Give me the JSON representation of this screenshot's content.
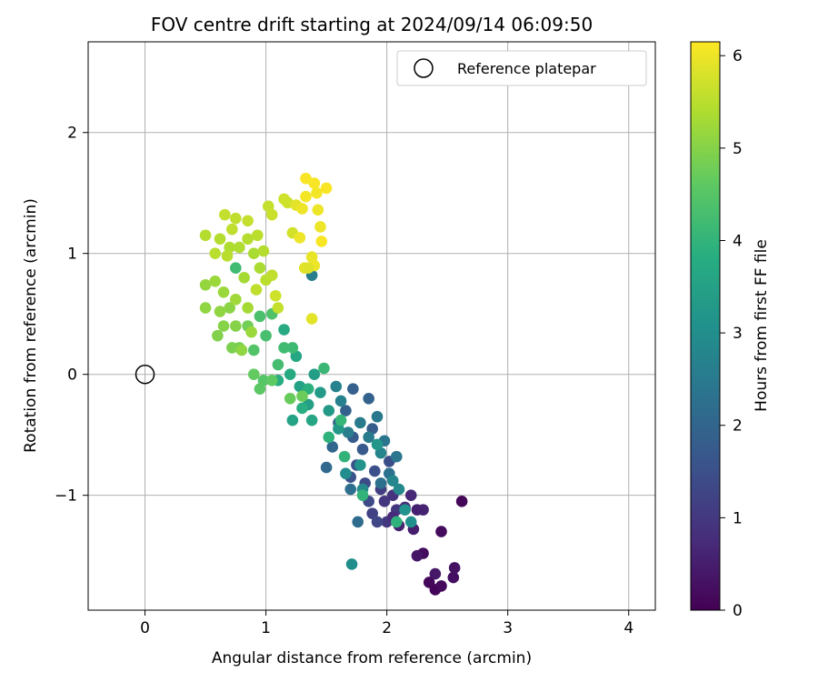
{
  "chart_data": {
    "type": "scatter",
    "title": "FOV centre drift starting at 2024/09/14 06:09:50",
    "xlabel": "Angular distance from reference (arcmin)",
    "ylabel": "Rotation from reference (arcmin)",
    "xlim": [
      -0.47,
      4.22
    ],
    "ylim": [
      -1.95,
      2.75
    ],
    "xticks": [
      "0",
      "1",
      "2",
      "3",
      "4"
    ],
    "yticks": [
      "−1",
      "0",
      "1",
      "2"
    ],
    "grid": true,
    "legend": {
      "placement": "top-right",
      "entries": [
        "Reference platepar"
      ]
    },
    "reference_point": {
      "x": 0,
      "y": 0
    },
    "colorbar": {
      "label": "Hours from first FF file",
      "range": [
        0,
        6.15
      ],
      "ticks": [
        "0",
        "1",
        "2",
        "3",
        "4",
        "5",
        "6"
      ],
      "colormap": "viridis"
    },
    "points": [
      {
        "x": 2.62,
        "y": -1.05,
        "c": 0.1
      },
      {
        "x": 2.45,
        "y": -1.3,
        "c": 0.2
      },
      {
        "x": 2.4,
        "y": -1.78,
        "c": 0.05
      },
      {
        "x": 2.35,
        "y": -1.72,
        "c": 0.1
      },
      {
        "x": 2.45,
        "y": -1.75,
        "c": 0.15
      },
      {
        "x": 2.55,
        "y": -1.68,
        "c": 0.25
      },
      {
        "x": 2.56,
        "y": -1.6,
        "c": 0.3
      },
      {
        "x": 2.3,
        "y": -1.48,
        "c": 0.2
      },
      {
        "x": 2.25,
        "y": -1.5,
        "c": 0.35
      },
      {
        "x": 2.4,
        "y": -1.65,
        "c": 0.4
      },
      {
        "x": 2.22,
        "y": -1.28,
        "c": 0.5
      },
      {
        "x": 2.1,
        "y": -1.25,
        "c": 0.6
      },
      {
        "x": 2.25,
        "y": -1.12,
        "c": 0.55
      },
      {
        "x": 2.2,
        "y": -1.0,
        "c": 0.7
      },
      {
        "x": 2.15,
        "y": -1.1,
        "c": 0.8
      },
      {
        "x": 2.05,
        "y": -1.0,
        "c": 0.9
      },
      {
        "x": 2.08,
        "y": -1.12,
        "c": 1.0
      },
      {
        "x": 2.0,
        "y": -1.22,
        "c": 1.0
      },
      {
        "x": 2.3,
        "y": -1.12,
        "c": 0.6
      },
      {
        "x": 2.05,
        "y": -1.18,
        "c": 0.75
      },
      {
        "x": 1.98,
        "y": -1.05,
        "c": 0.95
      },
      {
        "x": 1.95,
        "y": -0.95,
        "c": 1.1
      },
      {
        "x": 1.88,
        "y": -1.15,
        "c": 1.2
      },
      {
        "x": 1.92,
        "y": -1.22,
        "c": 1.3
      },
      {
        "x": 1.85,
        "y": -1.05,
        "c": 1.35
      },
      {
        "x": 1.82,
        "y": -0.9,
        "c": 1.4
      },
      {
        "x": 1.9,
        "y": -0.8,
        "c": 1.5
      },
      {
        "x": 2.02,
        "y": -0.72,
        "c": 1.45
      },
      {
        "x": 1.75,
        "y": -0.75,
        "c": 1.55
      },
      {
        "x": 1.7,
        "y": -0.85,
        "c": 1.6
      },
      {
        "x": 1.8,
        "y": -0.62,
        "c": 1.7
      },
      {
        "x": 1.72,
        "y": -0.52,
        "c": 1.75
      },
      {
        "x": 1.88,
        "y": -0.45,
        "c": 1.8
      },
      {
        "x": 1.66,
        "y": -0.3,
        "c": 1.9
      },
      {
        "x": 1.72,
        "y": -0.12,
        "c": 1.85
      },
      {
        "x": 1.85,
        "y": -0.2,
        "c": 1.95
      },
      {
        "x": 1.6,
        "y": -0.4,
        "c": 2.0
      },
      {
        "x": 1.55,
        "y": -0.6,
        "c": 2.05
      },
      {
        "x": 1.5,
        "y": -0.77,
        "c": 2.1
      },
      {
        "x": 1.76,
        "y": -1.22,
        "c": 2.15
      },
      {
        "x": 1.7,
        "y": -0.95,
        "c": 2.2
      },
      {
        "x": 1.95,
        "y": -0.9,
        "c": 2.25
      },
      {
        "x": 2.02,
        "y": -0.82,
        "c": 2.3
      },
      {
        "x": 1.98,
        "y": -0.55,
        "c": 2.35
      },
      {
        "x": 2.08,
        "y": -0.68,
        "c": 2.4
      },
      {
        "x": 1.92,
        "y": -0.35,
        "c": 2.45
      },
      {
        "x": 1.78,
        "y": -0.4,
        "c": 2.5
      },
      {
        "x": 1.85,
        "y": -0.52,
        "c": 2.55
      },
      {
        "x": 1.68,
        "y": -0.48,
        "c": 2.6
      },
      {
        "x": 1.62,
        "y": -0.22,
        "c": 2.65
      },
      {
        "x": 1.58,
        "y": -0.1,
        "c": 2.7
      },
      {
        "x": 1.95,
        "y": -0.65,
        "c": 2.75
      },
      {
        "x": 2.05,
        "y": -0.88,
        "c": 2.8
      },
      {
        "x": 2.1,
        "y": -0.95,
        "c": 2.85
      },
      {
        "x": 1.8,
        "y": -0.95,
        "c": 2.9
      },
      {
        "x": 1.66,
        "y": -0.82,
        "c": 2.95
      },
      {
        "x": 1.71,
        "y": -1.57,
        "c": 3.0
      },
      {
        "x": 1.38,
        "y": 0.82,
        "c": 2.6
      },
      {
        "x": 2.2,
        "y": -1.22,
        "c": 3.05
      },
      {
        "x": 2.15,
        "y": -1.12,
        "c": 3.1
      },
      {
        "x": 1.78,
        "y": -0.75,
        "c": 3.15
      },
      {
        "x": 1.92,
        "y": -0.58,
        "c": 3.2
      },
      {
        "x": 1.6,
        "y": -0.45,
        "c": 3.25
      },
      {
        "x": 1.52,
        "y": -0.3,
        "c": 3.3
      },
      {
        "x": 1.45,
        "y": -0.15,
        "c": 3.35
      },
      {
        "x": 1.4,
        "y": 0.0,
        "c": 3.4
      },
      {
        "x": 1.35,
        "y": -0.25,
        "c": 3.45
      },
      {
        "x": 1.28,
        "y": -0.1,
        "c": 3.5
      },
      {
        "x": 1.22,
        "y": -0.38,
        "c": 3.55
      },
      {
        "x": 1.38,
        "y": -0.38,
        "c": 3.6
      },
      {
        "x": 1.25,
        "y": 0.15,
        "c": 3.65
      },
      {
        "x": 1.15,
        "y": 0.37,
        "c": 3.7
      },
      {
        "x": 1.2,
        "y": 0.0,
        "c": 3.75
      },
      {
        "x": 1.1,
        "y": -0.05,
        "c": 3.8
      },
      {
        "x": 1.3,
        "y": -0.28,
        "c": 3.85
      },
      {
        "x": 1.35,
        "y": -0.12,
        "c": 3.9
      },
      {
        "x": 1.52,
        "y": -0.52,
        "c": 3.95
      },
      {
        "x": 1.65,
        "y": -0.68,
        "c": 4.0
      },
      {
        "x": 1.8,
        "y": -1.0,
        "c": 4.0
      },
      {
        "x": 2.08,
        "y": -1.22,
        "c": 3.95
      },
      {
        "x": 1.62,
        "y": -0.38,
        "c": 4.05
      },
      {
        "x": 1.48,
        "y": 0.05,
        "c": 4.1
      },
      {
        "x": 1.22,
        "y": 0.22,
        "c": 4.15
      },
      {
        "x": 1.15,
        "y": 0.22,
        "c": 4.2
      },
      {
        "x": 1.1,
        "y": 0.08,
        "c": 4.25
      },
      {
        "x": 1.0,
        "y": 0.32,
        "c": 4.3
      },
      {
        "x": 0.95,
        "y": 0.48,
        "c": 4.35
      },
      {
        "x": 1.05,
        "y": 0.5,
        "c": 4.4
      },
      {
        "x": 0.9,
        "y": 0.2,
        "c": 4.45
      },
      {
        "x": 0.98,
        "y": -0.05,
        "c": 4.5
      },
      {
        "x": 0.95,
        "y": -0.12,
        "c": 4.55
      },
      {
        "x": 1.05,
        "y": -0.05,
        "c": 4.6
      },
      {
        "x": 0.9,
        "y": 0.0,
        "c": 4.65
      },
      {
        "x": 1.2,
        "y": -0.2,
        "c": 4.7
      },
      {
        "x": 1.3,
        "y": -0.18,
        "c": 4.75
      },
      {
        "x": 0.75,
        "y": 0.88,
        "c": 4.2
      },
      {
        "x": 0.85,
        "y": 0.4,
        "c": 4.8
      },
      {
        "x": 0.78,
        "y": 0.22,
        "c": 4.85
      },
      {
        "x": 0.72,
        "y": 0.22,
        "c": 4.9
      },
      {
        "x": 0.6,
        "y": 0.32,
        "c": 4.95
      },
      {
        "x": 0.65,
        "y": 0.4,
        "c": 5.0
      },
      {
        "x": 0.75,
        "y": 0.4,
        "c": 5.0
      },
      {
        "x": 0.7,
        "y": 0.55,
        "c": 5.05
      },
      {
        "x": 0.62,
        "y": 0.52,
        "c": 5.1
      },
      {
        "x": 0.5,
        "y": 0.55,
        "c": 5.1
      },
      {
        "x": 0.5,
        "y": 0.74,
        "c": 5.15
      },
      {
        "x": 0.58,
        "y": 0.77,
        "c": 5.2
      },
      {
        "x": 0.65,
        "y": 0.68,
        "c": 5.2
      },
      {
        "x": 0.75,
        "y": 0.62,
        "c": 5.25
      },
      {
        "x": 0.85,
        "y": 0.55,
        "c": 5.3
      },
      {
        "x": 0.82,
        "y": 0.8,
        "c": 5.3
      },
      {
        "x": 0.95,
        "y": 0.88,
        "c": 5.35
      },
      {
        "x": 0.9,
        "y": 1.0,
        "c": 5.35
      },
      {
        "x": 0.78,
        "y": 1.05,
        "c": 5.4
      },
      {
        "x": 0.7,
        "y": 1.05,
        "c": 5.4
      },
      {
        "x": 0.62,
        "y": 1.12,
        "c": 5.45
      },
      {
        "x": 0.5,
        "y": 1.15,
        "c": 5.45
      },
      {
        "x": 0.58,
        "y": 1.0,
        "c": 5.5
      },
      {
        "x": 0.68,
        "y": 0.98,
        "c": 5.5
      },
      {
        "x": 0.72,
        "y": 1.2,
        "c": 5.55
      },
      {
        "x": 0.75,
        "y": 1.29,
        "c": 5.55
      },
      {
        "x": 0.66,
        "y": 1.32,
        "c": 5.6
      },
      {
        "x": 0.85,
        "y": 1.27,
        "c": 5.6
      },
      {
        "x": 0.85,
        "y": 1.12,
        "c": 5.45
      },
      {
        "x": 0.93,
        "y": 1.15,
        "c": 5.5
      },
      {
        "x": 0.98,
        "y": 1.02,
        "c": 5.45
      },
      {
        "x": 1.0,
        "y": 0.78,
        "c": 5.5
      },
      {
        "x": 1.05,
        "y": 0.82,
        "c": 5.55
      },
      {
        "x": 0.92,
        "y": 0.7,
        "c": 5.55
      },
      {
        "x": 1.02,
        "y": 1.39,
        "c": 5.6
      },
      {
        "x": 1.05,
        "y": 1.32,
        "c": 5.65
      },
      {
        "x": 1.15,
        "y": 1.45,
        "c": 5.7
      },
      {
        "x": 1.18,
        "y": 1.42,
        "c": 5.7
      },
      {
        "x": 1.22,
        "y": 1.17,
        "c": 5.75
      },
      {
        "x": 1.08,
        "y": 0.65,
        "c": 5.7
      },
      {
        "x": 1.1,
        "y": 0.55,
        "c": 5.6
      },
      {
        "x": 0.8,
        "y": 0.2,
        "c": 5.1
      },
      {
        "x": 0.88,
        "y": 0.35,
        "c": 5.2
      },
      {
        "x": 1.38,
        "y": 0.46,
        "c": 5.9
      },
      {
        "x": 1.25,
        "y": 1.4,
        "c": 5.9
      },
      {
        "x": 1.3,
        "y": 1.37,
        "c": 6.0
      },
      {
        "x": 1.33,
        "y": 1.47,
        "c": 6.05
      },
      {
        "x": 1.33,
        "y": 1.62,
        "c": 6.1
      },
      {
        "x": 1.4,
        "y": 1.58,
        "c": 6.1
      },
      {
        "x": 1.42,
        "y": 1.5,
        "c": 6.05
      },
      {
        "x": 1.5,
        "y": 1.54,
        "c": 6.1
      },
      {
        "x": 1.43,
        "y": 1.36,
        "c": 6.0
      },
      {
        "x": 1.45,
        "y": 1.22,
        "c": 6.0
      },
      {
        "x": 1.46,
        "y": 1.1,
        "c": 6.1
      },
      {
        "x": 1.38,
        "y": 0.97,
        "c": 5.95
      },
      {
        "x": 1.4,
        "y": 0.9,
        "c": 6.0
      },
      {
        "x": 1.32,
        "y": 0.88,
        "c": 5.9
      },
      {
        "x": 1.28,
        "y": 1.13,
        "c": 6.0
      },
      {
        "x": 1.35,
        "y": 0.88,
        "c": 5.85
      }
    ]
  }
}
